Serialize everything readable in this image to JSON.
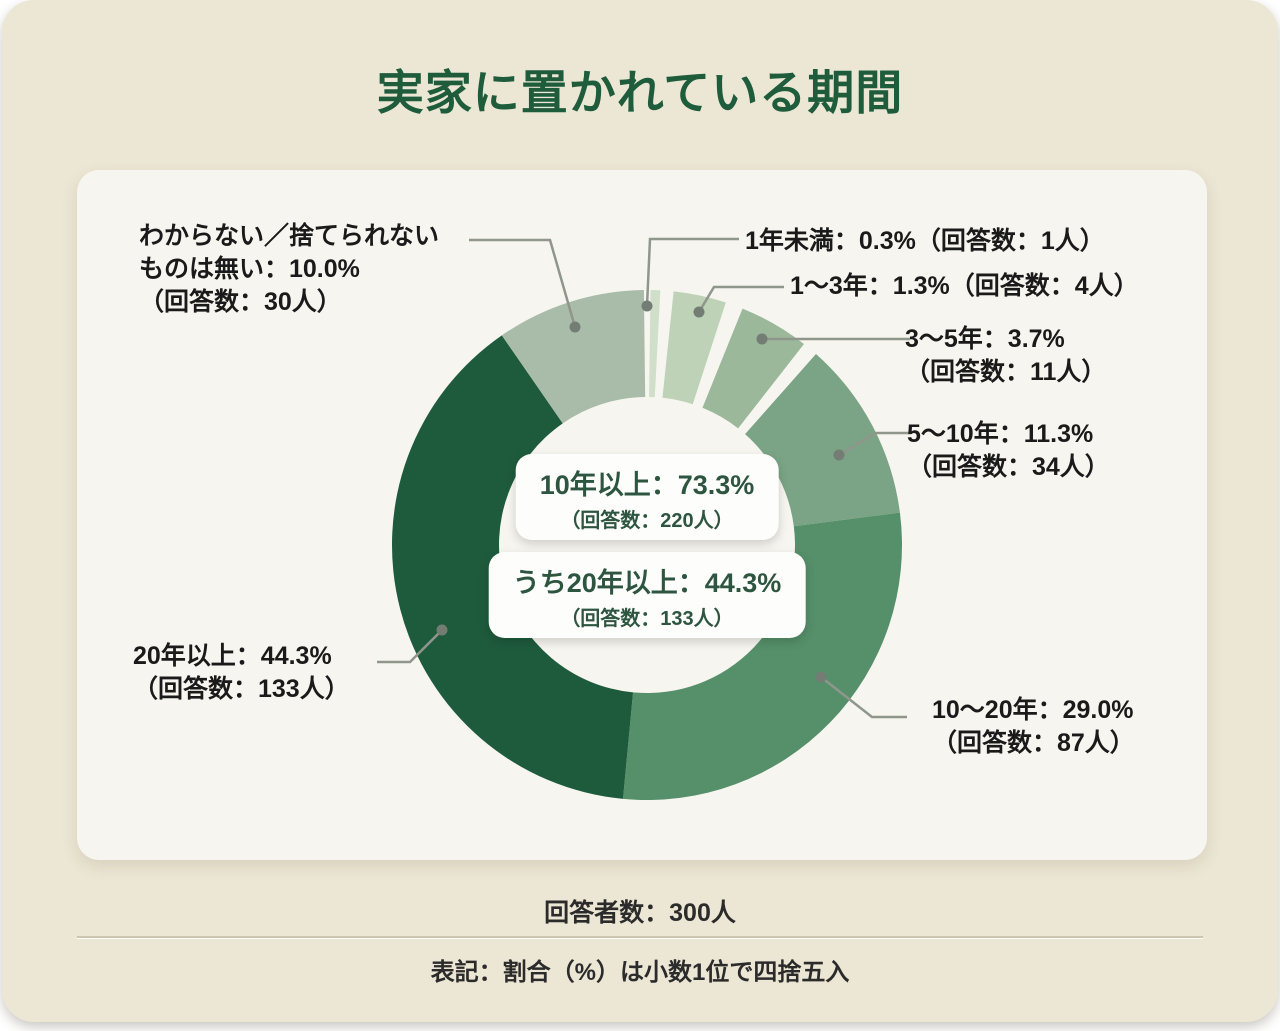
{
  "title": "実家に置かれている期間",
  "chart_data": {
    "type": "pie",
    "subtype": "donut",
    "title": "実家に置かれている期間",
    "total_respondents": 300,
    "unit": "人",
    "slices": [
      {
        "name": "1年未満",
        "percent": 0.3,
        "count": 1,
        "color": "#cfdfc9",
        "start_deg": 0.8,
        "end_deg": 3.0,
        "label_line1": "1年未満：0.3%（回答数：1人）"
      },
      {
        "name": "1～3年",
        "percent": 1.3,
        "count": 4,
        "color": "#bdd2b6",
        "start_deg": 6.0,
        "end_deg": 18.0,
        "label_line1": "1～3年：1.3%（回答数：4人）"
      },
      {
        "name": "3～5年",
        "percent": 3.7,
        "count": 11,
        "color": "#9cb89b",
        "start_deg": 22.0,
        "end_deg": 38.0,
        "label_line1": "3～5年：3.7%",
        "label_line2": "（回答数：11人）"
      },
      {
        "name": "5～10年",
        "percent": 11.3,
        "count": 34,
        "color": "#7aa485",
        "start_deg": 41.5,
        "end_deg": 82.7,
        "label_line1": "5～10年：11.3%",
        "label_line2": "（回答数：34人）"
      },
      {
        "name": "10～20年",
        "percent": 29.0,
        "count": 87,
        "color": "#55906a",
        "start_deg": 82.7,
        "end_deg": 185.4,
        "label_line1": "10～20年：29.0%",
        "label_line2": "（回答数：87人）"
      },
      {
        "name": "20年以上",
        "percent": 44.3,
        "count": 133,
        "color": "#1e5b3d",
        "start_deg": 185.4,
        "end_deg": 325.3,
        "label_line1": "20年以上：44.3%",
        "label_line2": "（回答数：133人）"
      },
      {
        "name": "わからない／捨てられないものは無い",
        "percent": 10.0,
        "count": 30,
        "color": "#a9bba9",
        "start_deg": 325.3,
        "end_deg": 359.3,
        "label_line1": "わからない／捨てられない",
        "label_line2": "ものは無い：10.0%",
        "label_line3": "（回答数：30人）"
      }
    ],
    "center_boxes": [
      {
        "line1": "10年以上：73.3%",
        "line2": "（回答数：220人）"
      },
      {
        "line1": "うち20年以上：44.3%",
        "line2": "（回答数：133人）"
      }
    ],
    "layout": {
      "donut_center": [
        570,
        375
      ],
      "outer_radius": 255,
      "inner_radius": 148,
      "rotation_start": "12-oclock-clockwise"
    }
  },
  "footer": {
    "respondents": "回答者数：300人",
    "note": "表記：割合（%）は小数1位で四捨五入"
  }
}
